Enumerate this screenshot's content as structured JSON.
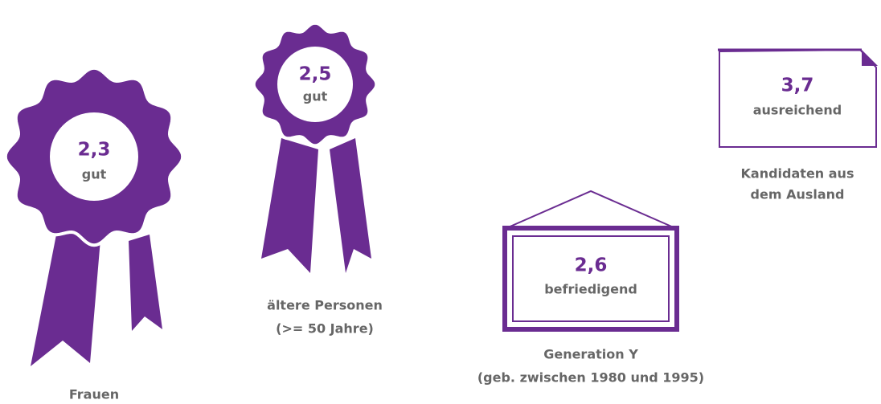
{
  "items": [
    {
      "score": "2,3",
      "grade": "gut",
      "caption": [
        "Frauen"
      ]
    },
    {
      "score": "2,5",
      "grade": "gut",
      "caption": [
        "ältere Personen",
        "(>= 50 Jahre)"
      ]
    },
    {
      "score": "2,6",
      "grade": "befriedigend",
      "caption": [
        "Generation Y",
        "(geb. zwischen 1980 und 1995)"
      ]
    },
    {
      "score": "3,7",
      "grade": "ausreichend",
      "caption": [
        "Kandidaten aus",
        "dem Ausland"
      ]
    }
  ]
}
